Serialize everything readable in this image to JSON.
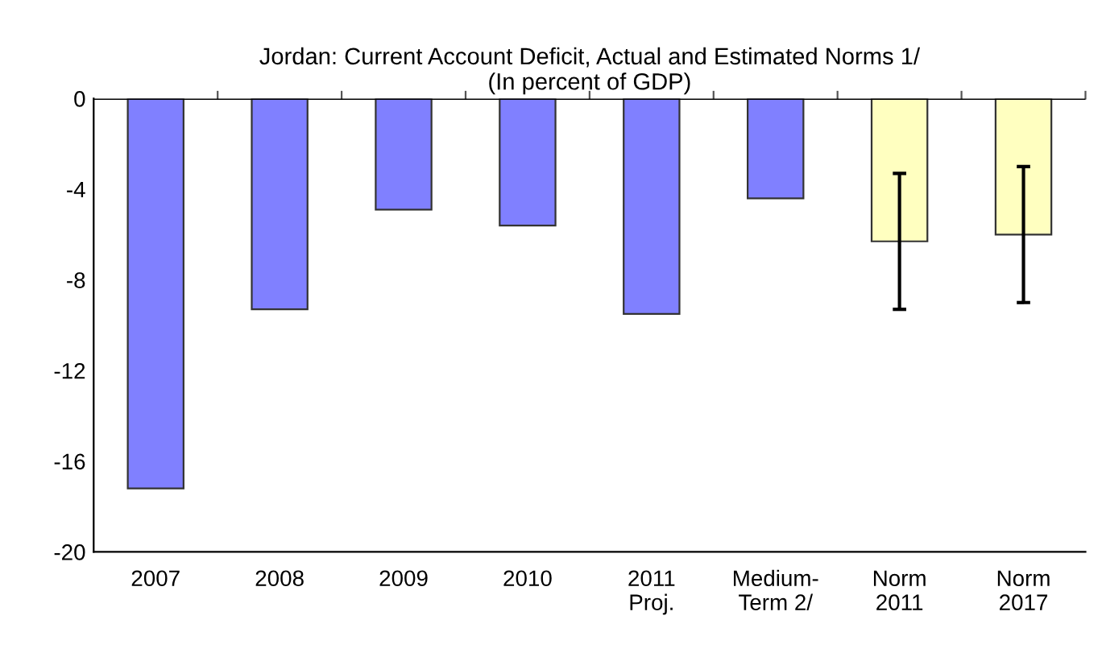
{
  "chart_data": {
    "type": "bar",
    "title": "Jordan: Current Account Deficit, Actual and Estimated Norms 1/",
    "subtitle": "(In percent of GDP)",
    "categories": [
      "2007",
      "2008",
      "2009",
      "2010",
      "2011\nProj.",
      "Medium-\nTerm 2/",
      "Norm\n2011",
      "Norm\n2017"
    ],
    "values": [
      -17.2,
      -9.3,
      -4.9,
      -5.6,
      -9.5,
      -4.4,
      -6.3,
      -6.0
    ],
    "colors": [
      "#8080ff",
      "#8080ff",
      "#8080ff",
      "#8080ff",
      "#8080ff",
      "#8080ff",
      "#ffffc0",
      "#ffffc0"
    ],
    "errors": [
      null,
      null,
      null,
      null,
      null,
      null,
      3.0,
      3.0
    ],
    "ylim": [
      -20,
      0
    ],
    "yticks": [
      -20,
      -16,
      -12,
      -8,
      -4,
      0
    ],
    "grid": false
  }
}
